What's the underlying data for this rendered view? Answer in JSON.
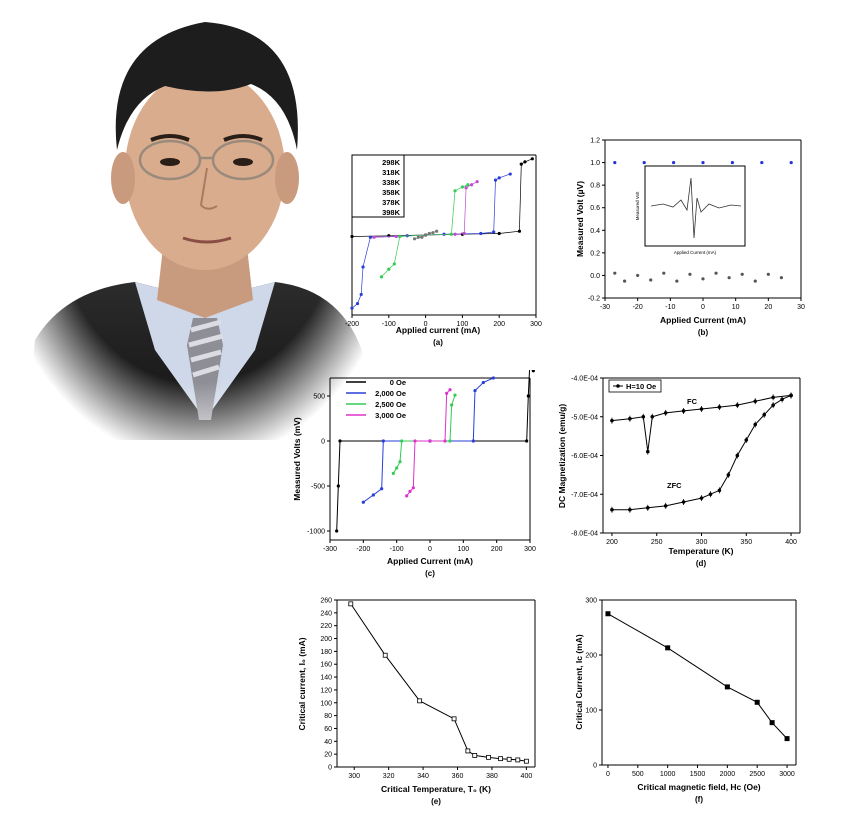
{
  "chart_data": [
    {
      "id": "a",
      "type": "scatter",
      "xlabel": "Applied current (mA)",
      "panel_label": "(a)",
      "xlim": [
        -200,
        300
      ],
      "xticks": [
        -200,
        -100,
        0,
        100,
        200,
        300
      ],
      "legend": [
        "298K",
        "318K",
        "338K",
        "358K",
        "378K",
        "398K"
      ],
      "series": [
        {
          "name": "298K",
          "color": "#000000",
          "points": [
            [
              -200,
              -0.02
            ],
            [
              -100,
              -0.01
            ],
            [
              0,
              0
            ],
            [
              100,
              0.01
            ],
            [
              200,
              0.02
            ],
            [
              255,
              0.05
            ],
            [
              260,
              0.93
            ],
            [
              270,
              0.96
            ],
            [
              290,
              1.0
            ]
          ]
        },
        {
          "name": "318K",
          "color": "#2a3fd8",
          "points": [
            [
              -200,
              -0.96
            ],
            [
              -185,
              -0.9
            ],
            [
              -175,
              -0.78
            ],
            [
              -170,
              -0.42
            ],
            [
              -150,
              -0.03
            ],
            [
              -50,
              -0.01
            ],
            [
              50,
              0.01
            ],
            [
              150,
              0.02
            ],
            [
              185,
              0.04
            ],
            [
              190,
              0.72
            ],
            [
              200,
              0.75
            ],
            [
              230,
              0.8
            ]
          ]
        },
        {
          "name": "338K",
          "color": "#c04ad0",
          "points": [
            [
              -140,
              -0.03
            ],
            [
              -80,
              -0.02
            ],
            [
              0,
              0
            ],
            [
              80,
              0.01
            ],
            [
              105,
              0.02
            ],
            [
              110,
              0.62
            ],
            [
              125,
              0.66
            ],
            [
              140,
              0.7
            ]
          ]
        },
        {
          "name": "358K",
          "color": "#33cc55",
          "points": [
            [
              -120,
              -0.55
            ],
            [
              -100,
              -0.45
            ],
            [
              -85,
              -0.38
            ],
            [
              -70,
              -0.02
            ],
            [
              0,
              0
            ],
            [
              70,
              0.01
            ],
            [
              80,
              0.58
            ],
            [
              100,
              0.63
            ],
            [
              115,
              0.66
            ]
          ]
        },
        {
          "name": "378K",
          "color": "#777777",
          "points": [
            [
              -30,
              -0.05
            ],
            [
              -10,
              -0.03
            ],
            [
              0,
              0
            ],
            [
              10,
              0.02
            ],
            [
              30,
              0.05
            ]
          ]
        },
        {
          "name": "398K",
          "color": "#777777",
          "points": [
            [
              -20,
              -0.03
            ],
            [
              0,
              0
            ],
            [
              20,
              0.03
            ]
          ]
        }
      ]
    },
    {
      "id": "b",
      "type": "scatter",
      "xlabel": "Applied Current (mA)",
      "ylabel": "Measured Volt (µV)",
      "panel_label": "(b)",
      "xlim": [
        -30,
        30
      ],
      "ylim": [
        -0.2,
        1.2
      ],
      "xticks": [
        -30,
        -20,
        -10,
        0,
        10,
        20,
        30
      ],
      "yticks": [
        -0.2,
        0.0,
        0.2,
        0.4,
        0.6,
        0.8,
        1.0,
        1.2
      ],
      "series": [
        {
          "name": "",
          "color": "#2233dd",
          "points": [
            [
              -27,
              1.0
            ],
            [
              -18,
              1.0
            ],
            [
              -9,
              1.0
            ],
            [
              0,
              1.0
            ],
            [
              9,
              1.0
            ],
            [
              18,
              1.0
            ],
            [
              27,
              1.0
            ]
          ]
        },
        {
          "name": "",
          "color": "#555555",
          "points": [
            [
              -27,
              0.02
            ],
            [
              -24,
              -0.05
            ],
            [
              -20,
              0.0
            ],
            [
              -16,
              -0.04
            ],
            [
              -12,
              0.02
            ],
            [
              -8,
              -0.05
            ],
            [
              -4,
              0.01
            ],
            [
              0,
              -0.03
            ],
            [
              4,
              0.02
            ],
            [
              8,
              -0.02
            ],
            [
              12,
              0.01
            ],
            [
              16,
              -0.05
            ],
            [
              20,
              0.01
            ],
            [
              24,
              -0.02
            ]
          ]
        }
      ],
      "inset": {
        "xlabel": "Applied Current (mA)",
        "ylabel": "Measured Volt"
      }
    },
    {
      "id": "c",
      "type": "line",
      "xlabel": "Applied Current (mA)",
      "ylabel": "Measured Volts (mV)",
      "panel_label": "(c)",
      "xlim": [
        -300,
        300
      ],
      "ylim": [
        -1100,
        700
      ],
      "xticks": [
        -300,
        -200,
        -100,
        0,
        100,
        200,
        300
      ],
      "yticks": [
        -1000,
        -500,
        0,
        500
      ],
      "legend": [
        "0 Oe",
        "2,000 Oe",
        "2,500 Oe",
        "3,000 Oe"
      ],
      "series": [
        {
          "name": "0 Oe",
          "color": "#000000",
          "points": [
            [
              -280,
              -1000
            ],
            [
              -275,
              -500
            ],
            [
              -270,
              0
            ],
            [
              0,
              0
            ],
            [
              290,
              0
            ],
            [
              295,
              500
            ],
            [
              300,
              900
            ],
            [
              310,
              780
            ]
          ]
        },
        {
          "name": "2,000 Oe",
          "color": "#2a3fd8",
          "points": [
            [
              -200,
              -680
            ],
            [
              -170,
              -600
            ],
            [
              -145,
              -530
            ],
            [
              -140,
              0
            ],
            [
              0,
              0
            ],
            [
              130,
              0
            ],
            [
              135,
              560
            ],
            [
              160,
              650
            ],
            [
              190,
              700
            ]
          ]
        },
        {
          "name": "2,500 Oe",
          "color": "#33cc55",
          "points": [
            [
              -110,
              -360
            ],
            [
              -100,
              -300
            ],
            [
              -90,
              -230
            ],
            [
              -85,
              0
            ],
            [
              0,
              0
            ],
            [
              60,
              0
            ],
            [
              65,
              400
            ],
            [
              75,
              510
            ]
          ]
        },
        {
          "name": "3,000 Oe",
          "color": "#dd33cc",
          "points": [
            [
              -70,
              -610
            ],
            [
              -60,
              -560
            ],
            [
              -50,
              -520
            ],
            [
              -45,
              0
            ],
            [
              0,
              0
            ],
            [
              45,
              0
            ],
            [
              50,
              530
            ],
            [
              60,
              570
            ]
          ]
        }
      ]
    },
    {
      "id": "d",
      "type": "line",
      "xlabel": "Temperature (K)",
      "ylabel": "DC Magnetization (emu/g)",
      "panel_label": "(d)",
      "xlim": [
        190,
        410
      ],
      "ylim": [
        -0.0008,
        -0.0004
      ],
      "xticks": [
        200,
        250,
        300,
        350,
        400
      ],
      "yticks": [
        "-4.0E-04",
        "-5.0E-04",
        "-6.0E-04",
        "-7.0E-04",
        "-8.0E-04"
      ],
      "legend": [
        "H=10 Oe"
      ],
      "annotations": [
        "FC",
        "ZFC"
      ],
      "series": [
        {
          "name": "FC",
          "color": "#000000",
          "points": [
            [
              200,
              -0.00051
            ],
            [
              220,
              -0.000505
            ],
            [
              235,
              -0.0005
            ],
            [
              240,
              -0.00059
            ],
            [
              245,
              -0.0005
            ],
            [
              260,
              -0.00049
            ],
            [
              280,
              -0.000485
            ],
            [
              300,
              -0.00048
            ],
            [
              320,
              -0.000475
            ],
            [
              340,
              -0.00047
            ],
            [
              360,
              -0.00046
            ],
            [
              380,
              -0.00045
            ],
            [
              400,
              -0.000445
            ]
          ]
        },
        {
          "name": "ZFC",
          "color": "#000000",
          "points": [
            [
              200,
              -0.00074
            ],
            [
              220,
              -0.00074
            ],
            [
              240,
              -0.000735
            ],
            [
              260,
              -0.00073
            ],
            [
              280,
              -0.00072
            ],
            [
              300,
              -0.00071
            ],
            [
              310,
              -0.0007
            ],
            [
              320,
              -0.00069
            ],
            [
              330,
              -0.00065
            ],
            [
              340,
              -0.0006
            ],
            [
              350,
              -0.00056
            ],
            [
              360,
              -0.00052
            ],
            [
              370,
              -0.000495
            ],
            [
              380,
              -0.00047
            ],
            [
              390,
              -0.000455
            ],
            [
              400,
              -0.000445
            ]
          ]
        }
      ]
    },
    {
      "id": "e",
      "type": "line",
      "xlabel": "Critical Temperature, T₀ (K)",
      "ylabel": "Critical current, I₀ (mA)",
      "panel_label": "(e)",
      "xlim": [
        290,
        405
      ],
      "ylim": [
        0,
        260
      ],
      "xticks": [
        300,
        320,
        340,
        360,
        380,
        400
      ],
      "yticks": [
        0,
        20,
        40,
        60,
        80,
        100,
        120,
        140,
        160,
        180,
        200,
        220,
        240,
        260
      ],
      "series": [
        {
          "name": "",
          "color": "#000000",
          "points": [
            [
              298,
              254
            ],
            [
              318,
              174
            ],
            [
              338,
              103
            ],
            [
              358,
              75
            ],
            [
              366,
              25
            ],
            [
              370,
              18
            ],
            [
              378,
              15
            ],
            [
              385,
              13
            ],
            [
              390,
              12
            ],
            [
              395,
              11
            ],
            [
              400,
              9
            ]
          ]
        }
      ]
    },
    {
      "id": "f",
      "type": "line",
      "xlabel": "Critical magnetic field, Hc (Oe)",
      "ylabel": "Critical Current, Ic (mA)",
      "panel_label": "(f)",
      "xlim": [
        -100,
        3150
      ],
      "ylim": [
        0,
        300
      ],
      "xticks": [
        0,
        500,
        1000,
        1500,
        2000,
        2500,
        3000
      ],
      "yticks": [
        0,
        100,
        200,
        300
      ],
      "series": [
        {
          "name": "",
          "color": "#000000",
          "points": [
            [
              0,
              275
            ],
            [
              1000,
              213
            ],
            [
              2000,
              142
            ],
            [
              2500,
              114
            ],
            [
              2750,
              77
            ],
            [
              3000,
              48
            ]
          ]
        }
      ]
    }
  ]
}
